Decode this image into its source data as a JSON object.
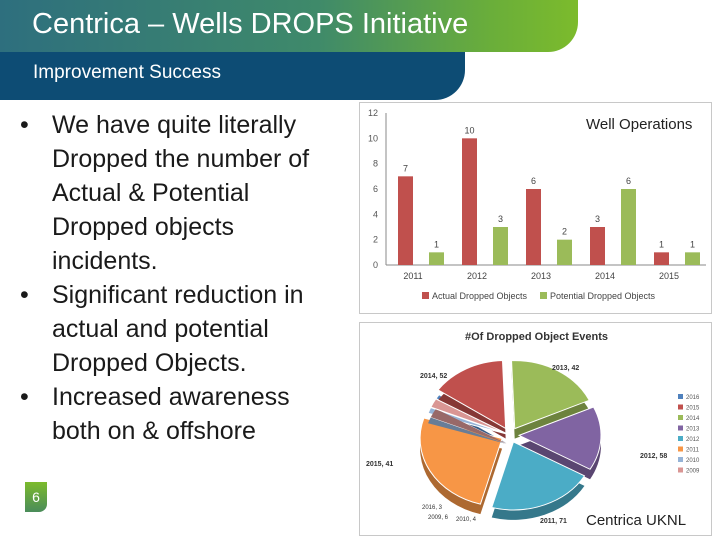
{
  "header": {
    "title": "Centrica – Wells DROPS Initiative",
    "subtitle": "Improvement Success"
  },
  "bullets": [
    "We have quite literally Dropped the number of Actual & Potential Dropped objects incidents.",
    "Significant reduction in actual and potential Dropped Objects.",
    "Increased awareness both on & offshore"
  ],
  "bullet_lines": [
    [
      "We have quite literally",
      "Dropped the number of",
      "Actual & Potential",
      "Dropped objects",
      "incidents."
    ],
    [
      "Significant reduction in",
      "actual and potential",
      "Dropped Objects."
    ],
    [
      "Increased awareness",
      "both on & offshore"
    ]
  ],
  "page_number": "6",
  "overlay_labels": {
    "bar_chart": "Well Operations",
    "pie_chart": "Centrica UKNL"
  },
  "colors": {
    "actual": "#c0504d",
    "potential": "#9bbb59"
  },
  "chart_data": [
    {
      "type": "bar",
      "categories": [
        "2011",
        "2012",
        "2013",
        "2014",
        "2015"
      ],
      "series": [
        {
          "name": "Actual Dropped Objects",
          "values": [
            7,
            10,
            6,
            3,
            1
          ]
        },
        {
          "name": "Potential Dropped Objects",
          "values": [
            1,
            3,
            2,
            6,
            1
          ]
        }
      ],
      "data_labels": [
        [
          "7",
          "10",
          "6",
          "3",
          "1"
        ],
        [
          "1",
          "3",
          "2",
          "6",
          "1"
        ]
      ],
      "ylim": [
        0,
        12
      ],
      "yticks": [
        0,
        2,
        4,
        6,
        8,
        10,
        12
      ],
      "grid": false,
      "legend": "bottom"
    },
    {
      "type": "pie",
      "title": "#Of Dropped Object Events",
      "slices": [
        {
          "label": "2016",
          "value": 3,
          "color": "#4f81bd"
        },
        {
          "label": "2015",
          "value": 41,
          "color": "#c0504d"
        },
        {
          "label": "2014",
          "value": 52,
          "color": "#9bbb59"
        },
        {
          "label": "2013",
          "value": 42,
          "color": "#8064a2"
        },
        {
          "label": "2012",
          "value": 58,
          "color": "#4bacc6"
        },
        {
          "label": "2011",
          "value": 71,
          "color": "#f79646"
        },
        {
          "label": "2010",
          "value": 4,
          "color": "#95b3d7"
        },
        {
          "label": "2009",
          "value": 6,
          "color": "#d99694"
        }
      ],
      "callouts": {
        "2014": "2014, 52",
        "2013": "2013, 42",
        "2015": "2015, 41",
        "2012": "2012, 58",
        "2011": "2011, 71",
        "2016": "2016, 3",
        "2009": "2009, 6",
        "2010": "2010, 4"
      },
      "legend_entries": [
        "2016",
        "2015",
        "2014",
        "2013",
        "2012",
        "2011",
        "2010",
        "2009"
      ],
      "legend": "right"
    }
  ]
}
